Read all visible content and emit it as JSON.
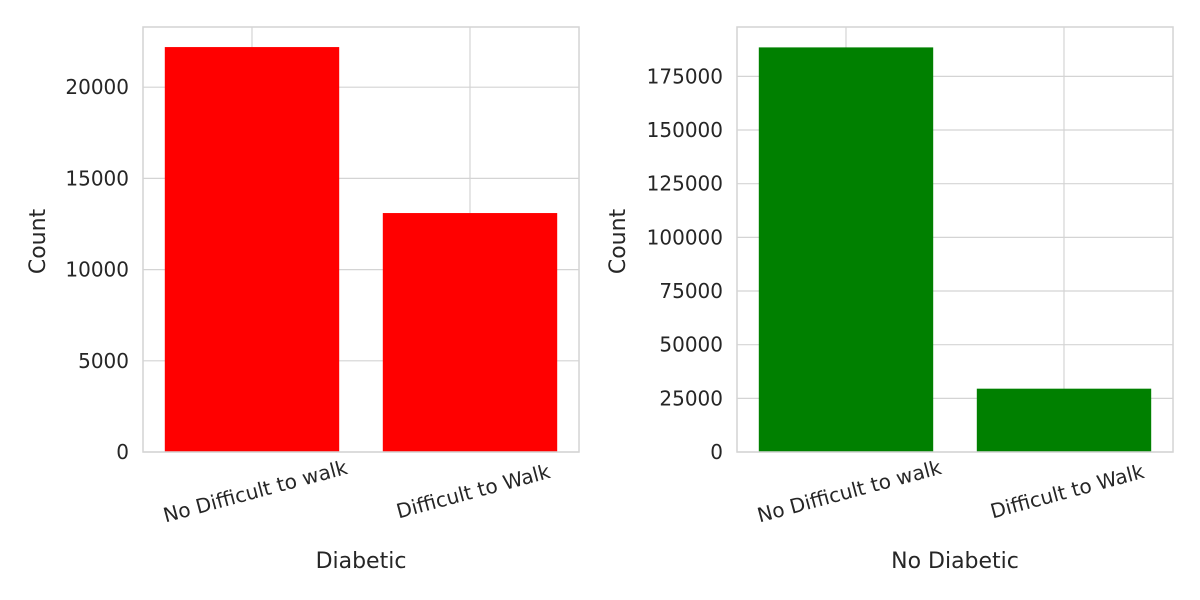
{
  "chart_data": [
    {
      "type": "bar",
      "categories": [
        "No Difficult to walk",
        "Difficult to Walk"
      ],
      "values": [
        22200,
        13100
      ],
      "color": "#ff0000",
      "xlabel": "Diabetic",
      "ylabel": "Count",
      "ylim": [
        0,
        23300
      ],
      "yticks": [
        0,
        5000,
        10000,
        15000,
        20000
      ],
      "grid": true,
      "legend": "none"
    },
    {
      "type": "bar",
      "categories": [
        "No Difficult to walk",
        "Difficult to Walk"
      ],
      "values": [
        188500,
        29500
      ],
      "color": "#008000",
      "xlabel": "No Diabetic",
      "ylabel": "Count",
      "ylim": [
        0,
        198000
      ],
      "yticks": [
        0,
        25000,
        50000,
        75000,
        100000,
        125000,
        150000,
        175000
      ],
      "grid": true,
      "legend": "none"
    }
  ]
}
